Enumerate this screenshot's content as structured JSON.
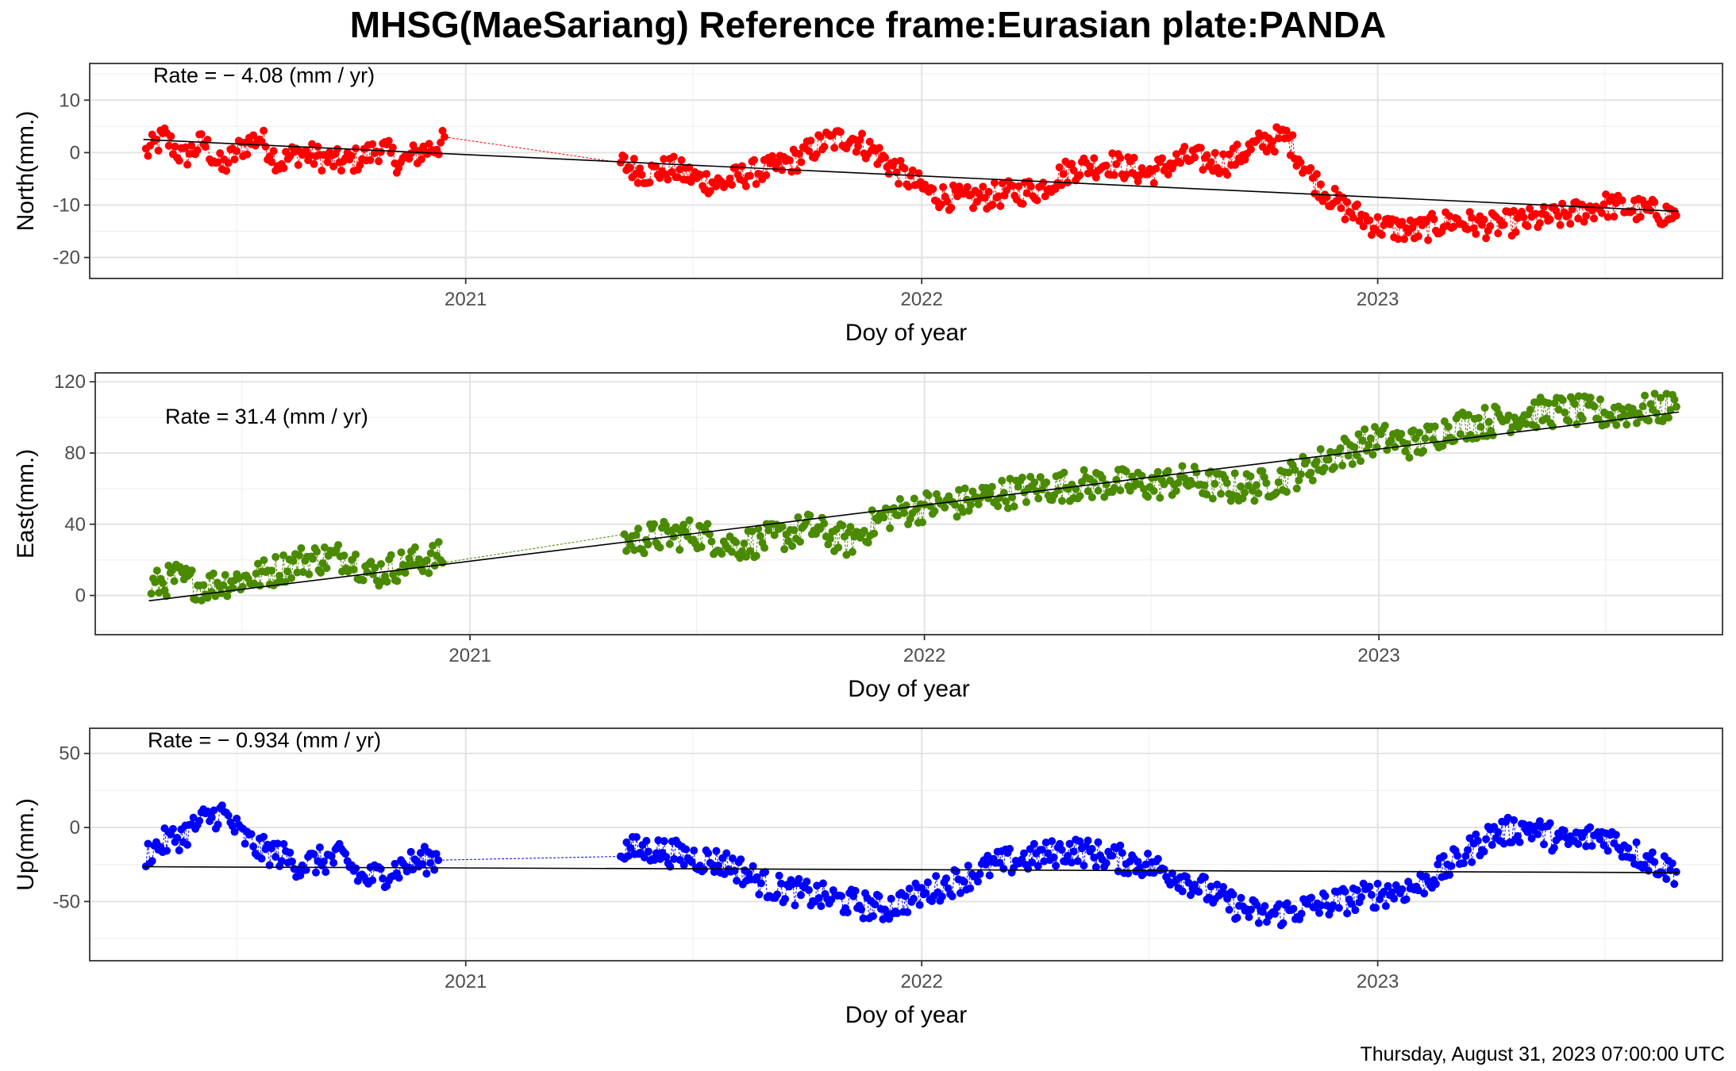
{
  "title": "MHSG(MaeSariang) Reference frame:Eurasian plate:PANDA",
  "footer": "Thursday, August 31, 2023 07:00:00 UTC",
  "chart_data": [
    {
      "type": "scatter",
      "ylabel": "North(mm.)",
      "xlabel": "Doy of year",
      "rate_label": "Rate = − 4.08 (mm / yr)",
      "color": "#ff0000",
      "xlim": [
        "2020-03-06",
        "2023-10-04"
      ],
      "ylim": [
        -24,
        17
      ],
      "yticks": [
        10,
        0,
        -10,
        -20
      ],
      "ytick_labels": [
        "10",
        "0",
        "-10",
        "-20"
      ],
      "xticks": [
        "2021-01-01",
        "2022-01-01",
        "2023-01-01"
      ],
      "xtick_labels": [
        "2021",
        "2022",
        "2023"
      ],
      "trend": {
        "x": [
          "2020-04-18",
          "2023-08-30"
        ],
        "y": [
          2.5,
          -11.2
        ]
      },
      "series_points": [
        [
          "2020-04-20",
          0
        ],
        [
          "2020-05-05",
          3
        ],
        [
          "2020-05-20",
          -1
        ],
        [
          "2020-06-05",
          2
        ],
        [
          "2020-06-20",
          -3
        ],
        [
          "2020-07-05",
          1
        ],
        [
          "2020-07-20",
          3
        ],
        [
          "2020-08-05",
          -2
        ],
        [
          "2020-08-20",
          0
        ],
        [
          "2020-09-25",
          -2
        ],
        [
          "2020-10-10",
          -1
        ],
        [
          "2020-10-25",
          1
        ],
        [
          "2020-11-10",
          -2
        ],
        [
          "2020-11-25",
          0
        ],
        [
          "2020-12-15",
          2
        ],
        [
          "2021-05-05",
          -2
        ],
        [
          "2021-05-25",
          -4
        ],
        [
          "2021-06-15",
          -3
        ],
        [
          "2021-07-05",
          -5
        ],
        [
          "2021-07-25",
          -6
        ],
        [
          "2021-08-15",
          -4
        ],
        [
          "2021-09-05",
          -3
        ],
        [
          "2021-09-25",
          -1
        ],
        [
          "2021-10-15",
          2
        ],
        [
          "2021-11-05",
          3
        ],
        [
          "2021-11-25",
          0
        ],
        [
          "2021-12-15",
          -4
        ],
        [
          "2022-01-10",
          -8
        ],
        [
          "2022-02-05",
          -9
        ],
        [
          "2022-03-05",
          -8
        ],
        [
          "2022-04-05",
          -7
        ],
        [
          "2022-05-01",
          -3
        ],
        [
          "2022-06-01",
          -2
        ],
        [
          "2022-07-01",
          -4
        ],
        [
          "2022-08-01",
          -1
        ],
        [
          "2022-09-01",
          -2
        ],
        [
          "2022-10-01",
          2
        ],
        [
          "2022-10-20",
          3
        ],
        [
          "2022-11-10",
          -5
        ],
        [
          "2022-12-01",
          -10
        ],
        [
          "2023-01-01",
          -14
        ],
        [
          "2023-02-01",
          -15
        ],
        [
          "2023-03-01",
          -13
        ],
        [
          "2023-04-01",
          -14
        ],
        [
          "2023-05-01",
          -13
        ],
        [
          "2023-06-01",
          -12
        ],
        [
          "2023-07-01",
          -10
        ],
        [
          "2023-08-01",
          -11
        ],
        [
          "2023-08-28",
          -12
        ]
      ]
    },
    {
      "type": "scatter",
      "ylabel": "East(mm.)",
      "xlabel": "Doy of year",
      "rate_label": "Rate = 31.4 (mm / yr)",
      "color": "#4a8a00",
      "xlim": [
        "2020-03-06",
        "2023-10-04"
      ],
      "ylim": [
        -22,
        125
      ],
      "yticks": [
        120,
        80,
        40,
        0
      ],
      "ytick_labels": [
        "120",
        "80",
        "40",
        "0"
      ],
      "xticks": [
        "2021-01-01",
        "2022-01-01",
        "2023-01-01"
      ],
      "xtick_labels": [
        "2021",
        "2022",
        "2023"
      ],
      "trend": {
        "x": [
          "2020-04-18",
          "2023-08-30"
        ],
        "y": [
          -3,
          103
        ]
      },
      "series_points": [
        [
          "2020-04-20",
          5
        ],
        [
          "2020-05-10",
          10
        ],
        [
          "2020-06-01",
          5
        ],
        [
          "2020-06-20",
          8
        ],
        [
          "2020-07-10",
          10
        ],
        [
          "2020-08-01",
          15
        ],
        [
          "2020-08-20",
          20
        ],
        [
          "2020-09-25",
          22
        ],
        [
          "2020-10-15",
          12
        ],
        [
          "2020-11-10",
          18
        ],
        [
          "2020-12-10",
          22
        ],
        [
          "2021-05-05",
          30
        ],
        [
          "2021-06-01",
          33
        ],
        [
          "2021-07-01",
          35
        ],
        [
          "2021-08-01",
          28
        ],
        [
          "2021-09-01",
          32
        ],
        [
          "2021-10-01",
          38
        ],
        [
          "2021-11-01",
          30
        ],
        [
          "2021-12-01",
          45
        ],
        [
          "2022-01-01",
          50
        ],
        [
          "2022-02-01",
          52
        ],
        [
          "2022-03-01",
          57
        ],
        [
          "2022-04-01",
          60
        ],
        [
          "2022-05-01",
          62
        ],
        [
          "2022-06-01",
          63
        ],
        [
          "2022-07-01",
          62
        ],
        [
          "2022-08-01",
          65
        ],
        [
          "2022-09-01",
          60
        ],
        [
          "2022-10-01",
          62
        ],
        [
          "2022-11-01",
          70
        ],
        [
          "2022-12-01",
          80
        ],
        [
          "2023-01-01",
          88
        ],
        [
          "2023-02-01",
          85
        ],
        [
          "2023-03-01",
          95
        ],
        [
          "2023-04-01",
          98
        ],
        [
          "2023-05-01",
          102
        ],
        [
          "2023-06-01",
          104
        ],
        [
          "2023-07-01",
          102
        ],
        [
          "2023-08-01",
          104
        ],
        [
          "2023-08-28",
          106
        ]
      ]
    },
    {
      "type": "scatter",
      "ylabel": "Up(mm.)",
      "xlabel": "Doy of year",
      "rate_label": "Rate = − 0.934 (mm / yr)",
      "color": "#0000ff",
      "xlim": [
        "2020-03-06",
        "2023-10-04"
      ],
      "ylim": [
        -90,
        67
      ],
      "yticks": [
        50,
        0,
        -50
      ],
      "ytick_labels": [
        "50",
        "0",
        "-50"
      ],
      "xticks": [
        "2021-01-01",
        "2022-01-01",
        "2023-01-01"
      ],
      "xtick_labels": [
        "2021",
        "2022",
        "2023"
      ],
      "trend": {
        "x": [
          "2020-04-18",
          "2023-08-30"
        ],
        "y": [
          -26.5,
          -30.5
        ]
      },
      "series_points": [
        [
          "2020-04-20",
          -18
        ],
        [
          "2020-05-05",
          -10
        ],
        [
          "2020-05-20",
          -5
        ],
        [
          "2020-06-05",
          5
        ],
        [
          "2020-06-20",
          10
        ],
        [
          "2020-07-05",
          -5
        ],
        [
          "2020-07-20",
          -15
        ],
        [
          "2020-08-05",
          -18
        ],
        [
          "2020-08-20",
          -25
        ],
        [
          "2020-09-25",
          -20
        ],
        [
          "2020-10-10",
          -35
        ],
        [
          "2020-10-25",
          -32
        ],
        [
          "2020-11-15",
          -25
        ],
        [
          "2020-12-10",
          -20
        ],
        [
          "2021-05-05",
          -15
        ],
        [
          "2021-06-01",
          -15
        ],
        [
          "2021-07-01",
          -20
        ],
        [
          "2021-08-01",
          -25
        ],
        [
          "2021-09-01",
          -40
        ],
        [
          "2021-10-01",
          -45
        ],
        [
          "2021-11-01",
          -50
        ],
        [
          "2021-12-01",
          -55
        ],
        [
          "2022-01-01",
          -45
        ],
        [
          "2022-02-01",
          -35
        ],
        [
          "2022-03-01",
          -25
        ],
        [
          "2022-04-01",
          -20
        ],
        [
          "2022-05-01",
          -15
        ],
        [
          "2022-06-01",
          -20
        ],
        [
          "2022-07-01",
          -25
        ],
        [
          "2022-08-01",
          -35
        ],
        [
          "2022-09-01",
          -50
        ],
        [
          "2022-10-01",
          -60
        ],
        [
          "2022-11-01",
          -55
        ],
        [
          "2022-12-01",
          -50
        ],
        [
          "2023-01-01",
          -45
        ],
        [
          "2023-02-01",
          -40
        ],
        [
          "2023-03-01",
          -25
        ],
        [
          "2023-04-01",
          -5
        ],
        [
          "2023-05-01",
          0
        ],
        [
          "2023-06-01",
          -10
        ],
        [
          "2023-07-01",
          -5
        ],
        [
          "2023-08-01",
          -20
        ],
        [
          "2023-08-28",
          -30
        ]
      ]
    }
  ]
}
